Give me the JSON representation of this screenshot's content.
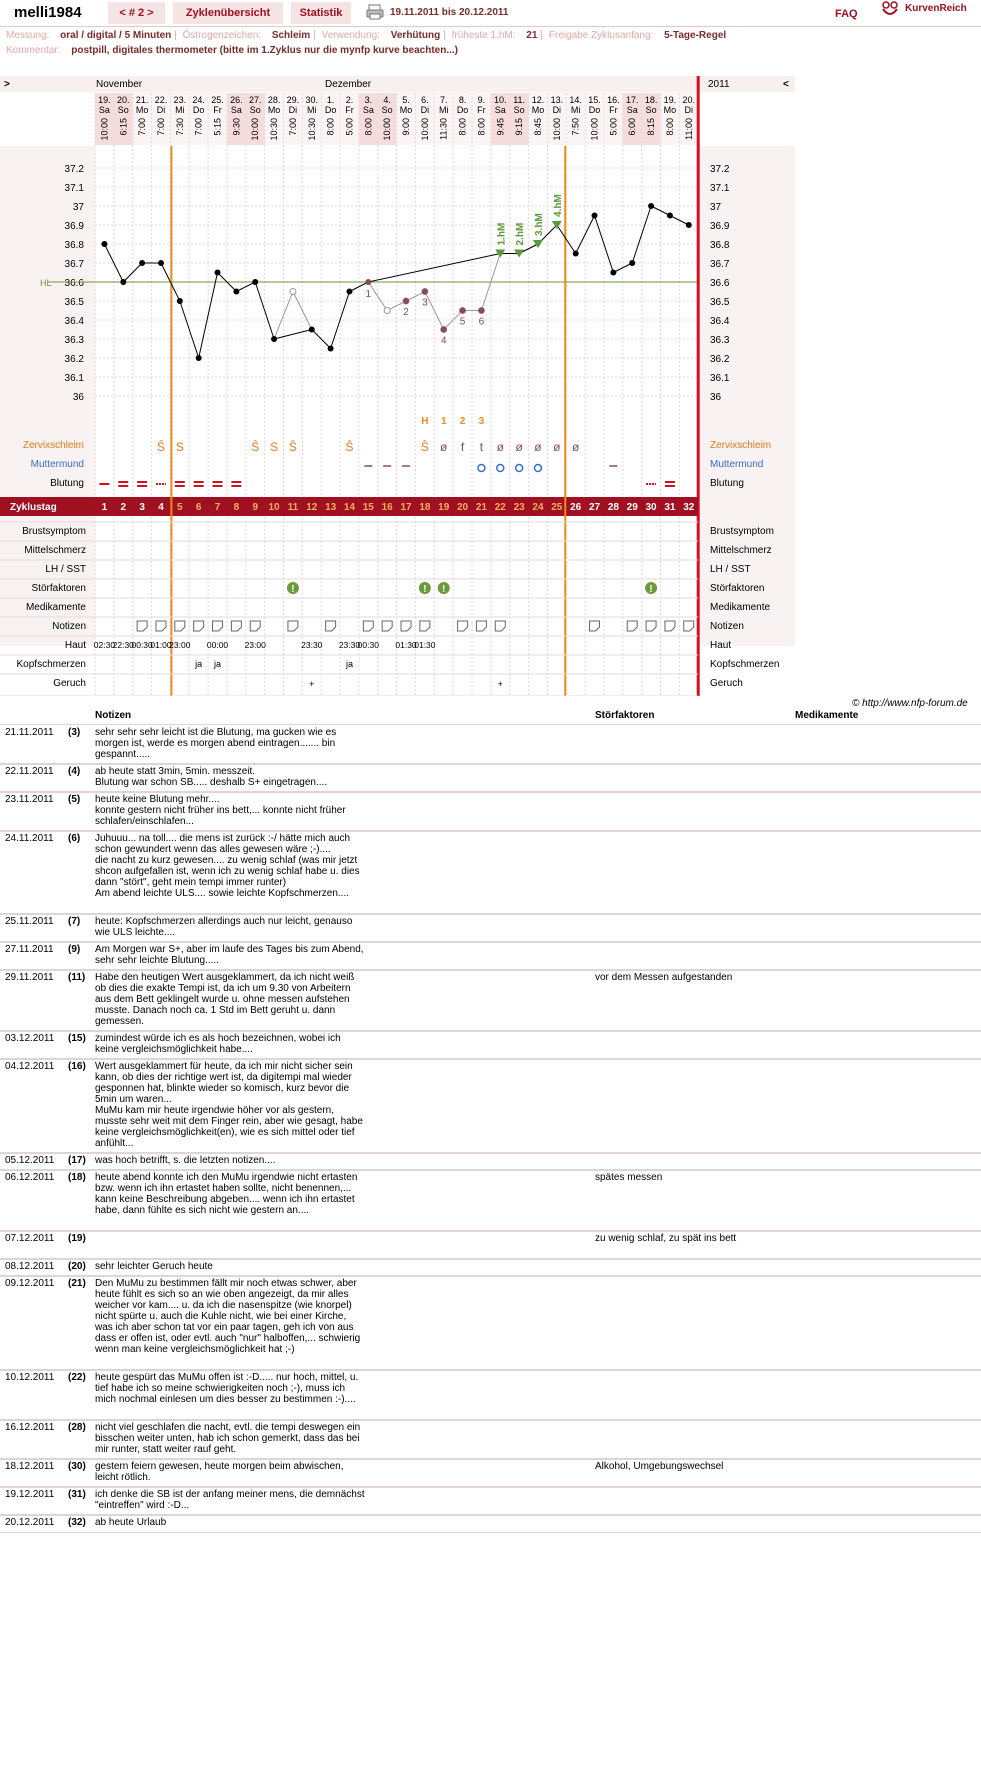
{
  "header": {
    "user": "melli1984",
    "cycle_nav": "< # 2 >",
    "tab_cycles": "Zyklenübersicht",
    "tab_stats": "Statistik",
    "date_range": "19.11.2011 bis 20.12.2011",
    "faq": "FAQ",
    "brand": "KurvenReich"
  },
  "info": {
    "messung_label": "Messung:",
    "messung": "oral / digital / 5 Minuten",
    "oestrogen_label": "Östrogenzeichen:",
    "oestrogen": "Schleim",
    "verwendung_label": "Verwendung:",
    "verwendung": "Verhütung",
    "hm_label": "früheste 1.hM:",
    "hm": "21",
    "freigabe_label": "Freigabe Zyklusanfang:",
    "freigabe": "5-Tage-Regel",
    "kommentar_label": "Kommentar:",
    "kommentar": "postpill, digitales thermometer (bitte im 1.Zyklus nur die mynfp kurve beachten...)"
  },
  "chart_data": {
    "type": "line",
    "month_labels": [
      "November",
      "Dezember"
    ],
    "year_label": "2011",
    "nav_left": ">",
    "nav_right": "<",
    "days": [
      "19.",
      "20.",
      "21.",
      "22.",
      "23.",
      "24.",
      "25.",
      "26.",
      "27.",
      "28.",
      "29.",
      "30.",
      "1.",
      "2.",
      "3.",
      "4.",
      "5.",
      "6.",
      "7.",
      "8.",
      "9.",
      "10.",
      "11.",
      "12.",
      "13.",
      "14.",
      "15.",
      "16.",
      "17.",
      "18.",
      "19.",
      "20."
    ],
    "weekdays": [
      "Sa",
      "So",
      "Mo",
      "Di",
      "Mi",
      "Do",
      "Fr",
      "Sa",
      "So",
      "Mo",
      "Di",
      "Mi",
      "Do",
      "Fr",
      "Sa",
      "So",
      "Mo",
      "Di",
      "Mi",
      "Do",
      "Fr",
      "Sa",
      "So",
      "Mo",
      "Di",
      "Mi",
      "Do",
      "Fr",
      "Sa",
      "So",
      "Mo",
      "Di"
    ],
    "times": [
      "10:00",
      "6:15",
      "7:00",
      "7:00",
      "7:30",
      "7:00",
      "5:15",
      "9:30",
      "10:00",
      "10:30",
      "7:00",
      "10:30",
      "8:00",
      "5:00",
      "8:00",
      "10:00",
      "9:00",
      "10:00",
      "11:30",
      "8:00",
      "8:00",
      "9:45",
      "9:15",
      "8:45",
      "10:00",
      "7:50",
      "10:00",
      "5:00",
      "6:00",
      "8:15",
      "8:00",
      "11:00"
    ],
    "cycle_days": [
      "1",
      "2",
      "3",
      "4",
      "5",
      "6",
      "7",
      "8",
      "9",
      "10",
      "11",
      "12",
      "13",
      "14",
      "15",
      "16",
      "17",
      "18",
      "19",
      "20",
      "21",
      "22",
      "23",
      "24",
      "25",
      "26",
      "27",
      "28",
      "29",
      "30",
      "31",
      "32"
    ],
    "temperatures": [
      36.8,
      36.6,
      36.7,
      36.7,
      36.5,
      36.2,
      36.65,
      36.55,
      36.6,
      36.3,
      36.55,
      36.35,
      36.25,
      36.55,
      36.6,
      36.45,
      36.5,
      36.55,
      36.35,
      36.45,
      36.45,
      36.75,
      36.75,
      36.8,
      36.9,
      36.75,
      36.95,
      36.65,
      36.7,
      37.0,
      36.95,
      36.9
    ],
    "excluded": [
      10,
      15,
      16,
      17,
      18,
      19,
      20
    ],
    "y_ticks": [
      "37.2",
      "37.1",
      "37",
      "36.9",
      "36.8",
      "36.7",
      "36.6",
      "36.5",
      "36.4",
      "36.3",
      "36.2",
      "36.1",
      "36"
    ],
    "ylim": [
      36.0,
      37.2
    ],
    "hl_label": "HL",
    "hl_value": 36.6,
    "low_numbers": [
      {
        "i": 14,
        "t": "1"
      },
      {
        "i": 16,
        "t": "2"
      },
      {
        "i": 17,
        "t": "3"
      },
      {
        "i": 18,
        "t": "4"
      },
      {
        "i": 19,
        "t": "5"
      },
      {
        "i": 20,
        "t": "6"
      }
    ],
    "high_labels": [
      {
        "i": 21,
        "t": "1.hM"
      },
      {
        "i": 22,
        "t": "2.hM"
      },
      {
        "i": 23,
        "t": "3.hM"
      },
      {
        "i": 24,
        "t": "4.hM"
      }
    ],
    "hcount": [
      {
        "i": 17,
        "t": "H"
      },
      {
        "i": 18,
        "t": "1"
      },
      {
        "i": 19,
        "t": "2"
      },
      {
        "i": 20,
        "t": "3"
      }
    ],
    "zervix": [
      {
        "i": 3,
        "t": "Ŝ"
      },
      {
        "i": 4,
        "t": "S"
      },
      {
        "i": 8,
        "t": "Ŝ"
      },
      {
        "i": 9,
        "t": "S"
      },
      {
        "i": 10,
        "t": "Ŝ"
      },
      {
        "i": 13,
        "t": "Ŝ"
      },
      {
        "i": 17,
        "t": "Ŝ"
      },
      {
        "i": 18,
        "t": "ø"
      },
      {
        "i": 19,
        "t": "f"
      },
      {
        "i": 20,
        "t": "t"
      },
      {
        "i": 21,
        "t": "ø"
      },
      {
        "i": 22,
        "t": "ø"
      },
      {
        "i": 23,
        "t": "ø"
      },
      {
        "i": 24,
        "t": "ø"
      },
      {
        "i": 25,
        "t": "ø"
      }
    ],
    "mumu": [
      14,
      15,
      16,
      20,
      21,
      22,
      23,
      27
    ],
    "bleeding": {
      "1": 0,
      "2": 2,
      "3": 2,
      "4": 1,
      "5": 2,
      "6": 2,
      "7": 2,
      "8": 2,
      "30": 1,
      "31": 2
    },
    "stoer": [
      10,
      17,
      18,
      29
    ],
    "notizen": [
      2,
      3,
      4,
      5,
      6,
      7,
      8,
      10,
      12,
      14,
      15,
      16,
      17,
      19,
      20,
      21,
      26,
      28,
      29,
      30,
      31
    ],
    "haut": [
      {
        "i": 0,
        "t": "02:30"
      },
      {
        "i": 1,
        "t": "22:30"
      },
      {
        "i": 2,
        "t": "00:30"
      },
      {
        "i": 3,
        "t": "01:00"
      },
      {
        "i": 4,
        "t": "23:00"
      },
      {
        "i": 6,
        "t": "00:00"
      },
      {
        "i": 8,
        "t": "23:00"
      },
      {
        "i": 11,
        "t": "23:30"
      },
      {
        "i": 13,
        "t": "23:30"
      },
      {
        "i": 14,
        "t": "00:30"
      },
      {
        "i": 16,
        "t": "01:30"
      },
      {
        "i": 17,
        "t": "01:30"
      }
    ],
    "kopf": [
      {
        "i": 5,
        "t": "ja"
      },
      {
        "i": 6,
        "t": "ja"
      },
      {
        "i": 13,
        "t": "ja"
      }
    ],
    "geruch": [
      {
        "i": 11,
        "t": "+"
      },
      {
        "i": 21,
        "t": "+"
      }
    ],
    "row_labels": {
      "zervix": "Zervixschleim",
      "mumu": "Muttermund",
      "blutung": "Blutung",
      "zyklustag": "Zyklustag",
      "brust": "Brustsymptom",
      "mittel": "Mittelschmerz",
      "lh": "LH / SST",
      "stoer": "Störfaktoren",
      "medi": "Medikamente",
      "notizen": "Notizen",
      "haut": "Haut",
      "kopf": "Kopfschmerzen",
      "geruch": "Geruch"
    }
  },
  "copyright": "© http://www.nfp-forum.de",
  "notes_headers": {
    "notizen": "Notizen",
    "stoer": "Störfaktoren",
    "medi": "Medikamente"
  },
  "notes": [
    {
      "date": "21.11.2011",
      "day": "(3)",
      "text": "sehr sehr sehr leicht ist die Blutung, ma gucken wie es morgen ist, werde es morgen abend eintragen....... bin gespannt.....",
      "stoer": ""
    },
    {
      "date": "22.11.2011",
      "day": "(4)",
      "text": "ab heute statt 3min, 5min. messzeit.\nBlutung war schon SB..... deshalb S+ eingetragen....",
      "stoer": ""
    },
    {
      "date": "23.11.2011",
      "day": "(5)",
      "text": "heute keine Blutung mehr....\nkonnte gestern nicht früher ins bett,... konnte nicht früher schlafen/einschlafen...",
      "stoer": ""
    },
    {
      "date": "24.11.2011",
      "day": "(6)",
      "text": "Juhuuu... na toll.... die mens ist zurück :-/ hätte mich auch schon gewundert wenn das alles gewesen wäre ;-)....\ndie nacht zu kurz gewesen.... zu wenig schlaf (was mir jetzt shcon aufgefallen ist, wenn ich zu wenig schlaf habe u. dies dann \"stört\", geht mein tempi immer runter)\nAm abend leichte ULS.... sowie leichte Kopfschmerzen....",
      "stoer": ""
    },
    {
      "date": "25.11.2011",
      "day": "(7)",
      "text": "heute: Kopfschmerzen allerdings auch nur leicht, genauso wie ULS leichte....",
      "stoer": ""
    },
    {
      "date": "27.11.2011",
      "day": "(9)",
      "text": "Am Morgen war S+, aber im laufe des Tages bis zum Abend, sehr sehr leichte Blutung.....",
      "stoer": ""
    },
    {
      "date": "29.11.2011",
      "day": "(11)",
      "text": "Habe den heutigen Wert ausgeklammert, da ich nicht weiß ob dies die exakte Tempi ist, da ich um 9.30 von Arbeitern aus dem Bett geklingelt wurde u. ohne messen aufstehen musste. Danach noch ca. 1 Std im Bett geruht u. dann gemessen.",
      "stoer": "vor dem Messen aufgestanden"
    },
    {
      "date": "03.12.2011",
      "day": "(15)",
      "text": "zumindest würde ich es als hoch bezeichnen, wobei ich keine vergleichsmöglichkeit habe....",
      "stoer": ""
    },
    {
      "date": "04.12.2011",
      "day": "(16)",
      "text": "Wert ausgeklammert für heute, da ich mir nicht sicher sein kann, ob dies der richtige wert ist, da digitempi mal wieder gesponnen hat, blinkte wieder so komisch, kurz bevor die 5min um waren...\nMuMu kam mir heute irgendwie höher vor als gestern, musste sehr weit mit dem Finger rein, aber wie gesagt, habe keine vergleichsmöglichkeit(en), wie es sich mittel oder tief anfühlt...",
      "stoer": ""
    },
    {
      "date": "05.12.2011",
      "day": "(17)",
      "text": "was hoch betrifft, s. die letzten notizen....",
      "stoer": ""
    },
    {
      "date": "06.12.2011",
      "day": "(18)",
      "text": "heute abend konnte ich den MuMu irgendwie nicht ertasten bzw. wenn ich ihn ertastet haben sollte, nicht benennen,... kann keine Beschreibung abgeben.... wenn ich ihn ertastet habe, dann fühlte es sich nicht wie gestern an....",
      "stoer": "spätes messen"
    },
    {
      "date": "07.12.2011",
      "day": "(19)",
      "text": "",
      "stoer": "zu wenig schlaf, zu spät ins bett"
    },
    {
      "date": "08.12.2011",
      "day": "(20)",
      "text": "sehr leichter Geruch heute",
      "stoer": ""
    },
    {
      "date": "09.12.2011",
      "day": "(21)",
      "text": "Den MuMu zu bestimmen fällt mir noch etwas schwer, aber heute fühlt es sich so an wie oben angezeigt, da mir alles weicher vor kam.... u. da ich die nasenspitze (wie knorpel) nicht spürte u. auch die Kuhle nicht, wie bei einer Kirche, was ich aber schon tat vor ein paar tagen, geh ich von aus dass er offen ist, oder evtl. auch \"nur\" halboffen,... schwierig wenn man keine vergleichsmöglichkeit hat ;-)",
      "stoer": ""
    },
    {
      "date": "10.12.2011",
      "day": "(22)",
      "text": "heute gespürt das MuMu offen ist :-D..... nur hoch, mittel, u. tief habe ich so meine schwierigkeiten noch ;-), muss ich mich nochmal einlesen um dies besser zu bestimmen :-)....",
      "stoer": ""
    },
    {
      "date": "16.12.2011",
      "day": "(28)",
      "text": "nicht viel geschlafen die nacht, evtl. die tempi deswegen ein bisschen weiter unten, hab ich schon gemerkt, dass das bei mir runter, statt weiter rauf geht.",
      "stoer": ""
    },
    {
      "date": "18.12.2011",
      "day": "(30)",
      "text": "gestern feiern gewesen, heute morgen beim abwischen, leicht rötlich.",
      "stoer": "Alkohol, Umgebungswechsel"
    },
    {
      "date": "19.12.2011",
      "day": "(31)",
      "text": "ich denke die SB ist der anfang meiner mens, die demnächst \"eintreffen\" wird :-D...",
      "stoer": ""
    },
    {
      "date": "20.12.2011",
      "day": "(32)",
      "text": "ab heute Urlaub",
      "stoer": ""
    }
  ]
}
